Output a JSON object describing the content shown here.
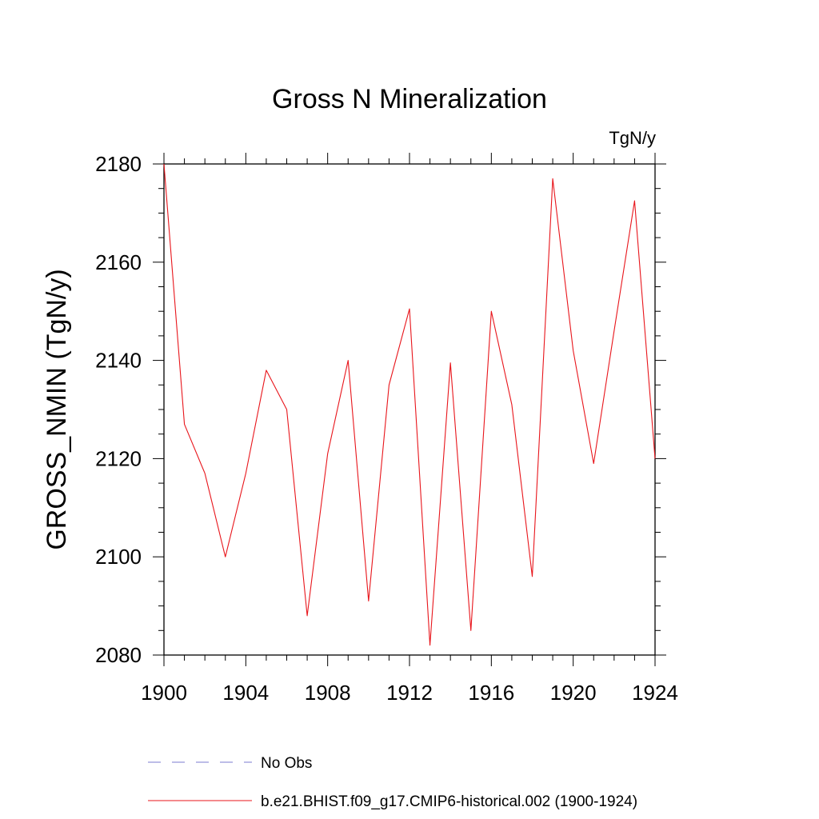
{
  "chart_data": {
    "type": "line",
    "title": "Gross N Mineralization",
    "units_label": "TgN/y",
    "xlabel": "",
    "ylabel": "GROSS_NMIN  (TgN/y)",
    "xlim": [
      1900,
      1924
    ],
    "ylim": [
      2080,
      2180
    ],
    "x_ticks": [
      1900,
      1904,
      1908,
      1912,
      1916,
      1920,
      1924
    ],
    "y_ticks": [
      2080,
      2100,
      2120,
      2140,
      2160,
      2180
    ],
    "grid": false,
    "legend_position": "bottom",
    "series": [
      {
        "name": "b.e21.BHIST.f09_g17.CMIP6-historical.002 (1900-1924)",
        "color": "#e8151b",
        "style": "solid",
        "x": [
          1900,
          1901,
          1902,
          1903,
          1904,
          1905,
          1906,
          1907,
          1908,
          1909,
          1910,
          1911,
          1912,
          1913,
          1914,
          1915,
          1916,
          1917,
          1918,
          1919,
          1920,
          1921,
          1922,
          1923,
          1924
        ],
        "values": [
          2180,
          2127,
          2117,
          2100,
          2117,
          2138,
          2130,
          2088,
          2121,
          2140,
          2091,
          2135,
          2150.5,
          2082,
          2139.5,
          2085,
          2150,
          2131,
          2096,
          2177,
          2142,
          2119,
          2146,
          2172.5,
          2120
        ]
      },
      {
        "name": "No Obs",
        "color": "#7b7bd0",
        "style": "dashed",
        "x": [],
        "values": []
      }
    ]
  }
}
